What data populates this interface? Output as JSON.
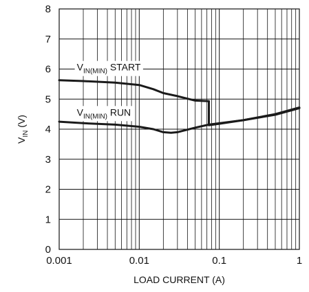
{
  "chart_data": {
    "type": "line",
    "title": "",
    "xlabel": "LOAD CURRENT (A)",
    "ylabel": {
      "main": "V",
      "sub": "IN",
      "unit": " (V)"
    },
    "x_scale": "log",
    "xlim": [
      0.001,
      1
    ],
    "ylim": [
      0,
      8
    ],
    "x_ticks": [
      {
        "value": 0.001,
        "label": "0.001"
      },
      {
        "value": 0.01,
        "label": "0.01"
      },
      {
        "value": 0.1,
        "label": "0.1"
      },
      {
        "value": 1,
        "label": "1"
      }
    ],
    "y_ticks": [
      {
        "value": 0,
        "label": "0"
      },
      {
        "value": 1,
        "label": "1"
      },
      {
        "value": 2,
        "label": "2"
      },
      {
        "value": 3,
        "label": "3"
      },
      {
        "value": 4,
        "label": "4"
      },
      {
        "value": 5,
        "label": "5"
      },
      {
        "value": 6,
        "label": "6"
      },
      {
        "value": 7,
        "label": "7"
      },
      {
        "value": 8,
        "label": "8"
      }
    ],
    "grid": true,
    "series": [
      {
        "name": "VIN(MIN) START",
        "label_parts": {
          "main": "V",
          "sub": "IN(MIN)",
          "suffix": " START"
        },
        "label_anchor": {
          "x": 0.00166,
          "y": 5.95
        },
        "points": [
          [
            0.001,
            5.63
          ],
          [
            0.002,
            5.6
          ],
          [
            0.005,
            5.55
          ],
          [
            0.01,
            5.47
          ],
          [
            0.015,
            5.33
          ],
          [
            0.02,
            5.2
          ],
          [
            0.03,
            5.1
          ],
          [
            0.05,
            4.95
          ],
          [
            0.074,
            4.93
          ],
          [
            0.074,
            4.13
          ],
          [
            0.1,
            4.18
          ],
          [
            0.2,
            4.3
          ],
          [
            0.5,
            4.5
          ],
          [
            1,
            4.72
          ]
        ]
      },
      {
        "name": "VIN(MIN) RUN",
        "label_parts": {
          "main": "V",
          "sub": "IN(MIN)",
          "suffix": " RUN"
        },
        "label_anchor": {
          "x": 0.00166,
          "y": 4.45
        },
        "points": [
          [
            0.001,
            4.25
          ],
          [
            0.002,
            4.2
          ],
          [
            0.005,
            4.15
          ],
          [
            0.01,
            4.08
          ],
          [
            0.015,
            4.0
          ],
          [
            0.02,
            3.9
          ],
          [
            0.025,
            3.88
          ],
          [
            0.03,
            3.9
          ],
          [
            0.05,
            4.05
          ],
          [
            0.074,
            4.15
          ],
          [
            0.1,
            4.2
          ],
          [
            0.2,
            4.3
          ],
          [
            0.5,
            4.48
          ],
          [
            1,
            4.7
          ]
        ]
      }
    ]
  }
}
